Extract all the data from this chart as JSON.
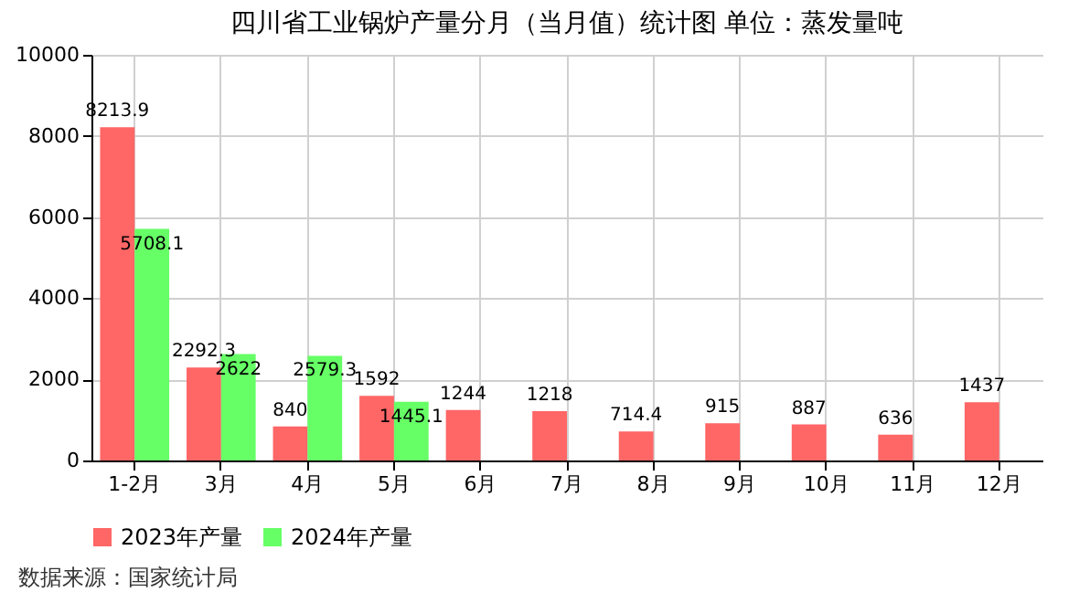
{
  "chart_data": {
    "type": "bar",
    "title": "四川省工业锅炉产量分月（当月值）统计图 单位：蒸发量吨",
    "categories": [
      "1-2月",
      "3月",
      "4月",
      "5月",
      "6月",
      "7月",
      "8月",
      "9月",
      "10月",
      "11月",
      "12月"
    ],
    "series": [
      {
        "name": "2023年产量",
        "color": "#ff6666",
        "values": [
          8213.9,
          2292.3,
          840,
          1592,
          1244,
          1218,
          714.4,
          915,
          887,
          636,
          1437
        ]
      },
      {
        "name": "2024年产量",
        "color": "#66ff66",
        "values": [
          5708.1,
          2622,
          2579.3,
          1445.1,
          null,
          null,
          null,
          null,
          null,
          null,
          null
        ]
      }
    ],
    "ylim": [
      0,
      10000
    ],
    "yticks": [
      0,
      2000,
      4000,
      6000,
      8000,
      10000
    ],
    "grid": true,
    "legend": "bottom",
    "data_labels": true,
    "annotations": [
      "数据来源：国家统计局"
    ]
  }
}
